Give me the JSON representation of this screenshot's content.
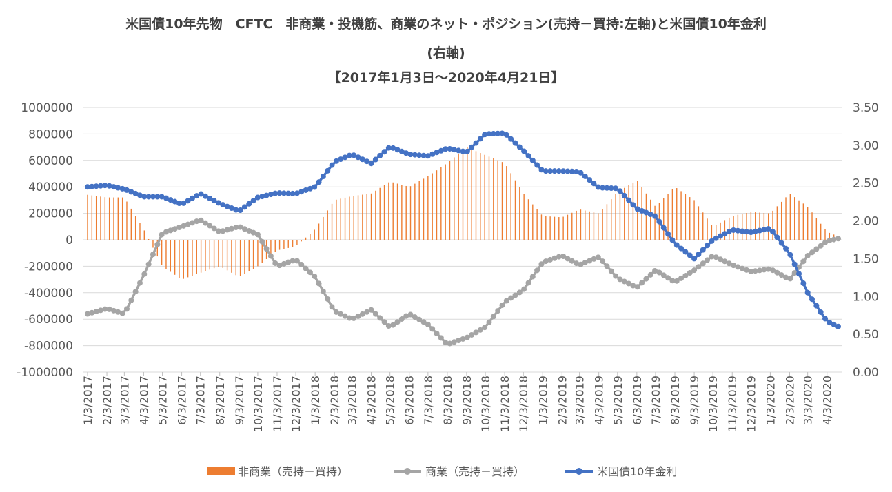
{
  "chart_data": {
    "type": "bar+line",
    "title_lines": [
      "米国債10年先物　CFTC　非商業・投機筋、商業のネット・ポジション(売持－買持:左軸)と米国債10年金利",
      "(右軸)",
      "【2017年1月3日～2020年4月21日】"
    ],
    "left_axis": {
      "ylim": [
        -1000000,
        1000000
      ],
      "tick_labels": [
        "1000000",
        "800000",
        "600000",
        "400000",
        "200000",
        "0",
        "-200000",
        "-400000",
        "-600000",
        "-800000",
        "-1000000"
      ]
    },
    "right_axis": {
      "ylim": [
        0.0,
        3.5
      ],
      "tick_labels": [
        "3.50",
        "3.00",
        "2.50",
        "2.00",
        "1.50",
        "1.00",
        "0.50",
        "0.00"
      ]
    },
    "x_tick_labels": [
      "1/3/2017",
      "2/3/2017",
      "3/3/2017",
      "4/3/2017",
      "5/3/2017",
      "6/3/2017",
      "7/3/2017",
      "8/3/2017",
      "9/3/2017",
      "10/3/2017",
      "11/3/2017",
      "12/3/2017",
      "1/3/2018",
      "2/3/2018",
      "3/3/2018",
      "4/3/2018",
      "5/3/2018",
      "6/3/2018",
      "7/3/2018",
      "8/3/2018",
      "9/3/2018",
      "10/3/2018",
      "11/3/2018",
      "12/3/2018",
      "1/3/2019",
      "2/3/2019",
      "3/3/2019",
      "4/3/2019",
      "5/3/2019",
      "6/3/2019",
      "7/3/2019",
      "8/3/2019",
      "9/3/2019",
      "10/3/2019",
      "11/3/2019",
      "12/3/2019",
      "1/3/2020",
      "2/3/2020",
      "3/3/2020",
      "4/3/2020"
    ],
    "grid": "horizontal",
    "legend_position": "bottom",
    "monthly_anchors": {
      "months": [
        "2017-01",
        "2017-02",
        "2017-03",
        "2017-04",
        "2017-05",
        "2017-06",
        "2017-07",
        "2017-08",
        "2017-09",
        "2017-10",
        "2017-11",
        "2017-12",
        "2018-01",
        "2018-02",
        "2018-03",
        "2018-04",
        "2018-05",
        "2018-06",
        "2018-07",
        "2018-08",
        "2018-09",
        "2018-10",
        "2018-11",
        "2018-12",
        "2019-01",
        "2019-02",
        "2019-03",
        "2019-04",
        "2019-05",
        "2019-06",
        "2019-07",
        "2019-08",
        "2019-09",
        "2019-10",
        "2019-11",
        "2019-12",
        "2020-01",
        "2020-02",
        "2020-03",
        "2020-04"
      ],
      "non_commercial": [
        340000,
        320000,
        320000,
        80000,
        -200000,
        -300000,
        -250000,
        -200000,
        -280000,
        -200000,
        -80000,
        -50000,
        80000,
        300000,
        330000,
        350000,
        440000,
        400000,
        480000,
        580000,
        700000,
        640000,
        580000,
        350000,
        180000,
        170000,
        230000,
        200000,
        360000,
        450000,
        250000,
        400000,
        300000,
        100000,
        180000,
        210000,
        200000,
        350000,
        250000,
        60000
      ],
      "commercial": [
        -560000,
        -520000,
        -560000,
        -270000,
        50000,
        100000,
        150000,
        60000,
        100000,
        40000,
        -200000,
        -150000,
        -280000,
        -540000,
        -600000,
        -530000,
        -660000,
        -560000,
        -640000,
        -790000,
        -740000,
        -660000,
        -470000,
        -380000,
        -170000,
        -120000,
        -190000,
        -130000,
        -290000,
        -360000,
        -230000,
        -320000,
        -230000,
        -120000,
        -190000,
        -240000,
        -220000,
        -300000,
        -120000,
        -10000
      ],
      "yield_10y": [
        2.45,
        2.47,
        2.42,
        2.32,
        2.32,
        2.22,
        2.36,
        2.23,
        2.13,
        2.31,
        2.37,
        2.36,
        2.45,
        2.78,
        2.88,
        2.76,
        2.98,
        2.88,
        2.86,
        2.96,
        2.91,
        3.15,
        3.16,
        2.93,
        2.66,
        2.66,
        2.65,
        2.44,
        2.43,
        2.16,
        2.06,
        1.7,
        1.5,
        1.75,
        1.88,
        1.85,
        1.9,
        1.57,
        1.05,
        0.67
      ]
    },
    "series": [
      {
        "name": "非商業（売持－買持）",
        "type": "bar",
        "axis": "left",
        "color": "#ED7D31"
      },
      {
        "name": "商業（売持－買持）",
        "type": "line",
        "axis": "left",
        "color": "#A5A5A5"
      },
      {
        "name": "米国債10年金利",
        "type": "line",
        "axis": "right",
        "color": "#4472C4"
      }
    ]
  }
}
